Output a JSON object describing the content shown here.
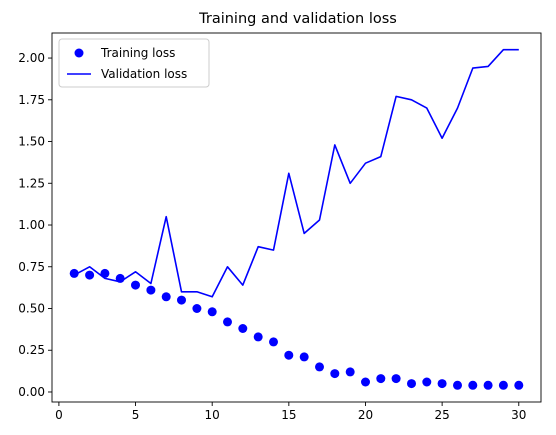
{
  "chart_data": {
    "type": "line",
    "title": "Training and validation loss",
    "xlabel": "",
    "ylabel": "",
    "xlim": [
      -0.45,
      31.45
    ],
    "ylim": [
      -0.06,
      2.15
    ],
    "xticks": [
      0,
      5,
      10,
      15,
      20,
      25,
      30
    ],
    "xtick_labels": [
      "0",
      "5",
      "10",
      "15",
      "20",
      "25",
      "30"
    ],
    "yticks": [
      0.0,
      0.25,
      0.5,
      0.75,
      1.0,
      1.25,
      1.5,
      1.75,
      2.0
    ],
    "ytick_labels": [
      "0.00",
      "0.25",
      "0.50",
      "0.75",
      "1.00",
      "1.25",
      "1.50",
      "1.75",
      "2.00"
    ],
    "grid": false,
    "legend_position": "top-left",
    "x": [
      1,
      2,
      3,
      4,
      5,
      6,
      7,
      8,
      9,
      10,
      11,
      12,
      13,
      14,
      15,
      16,
      17,
      18,
      19,
      20,
      21,
      22,
      23,
      24,
      25,
      26,
      27,
      28,
      29,
      30
    ],
    "series": [
      {
        "name": "Training loss",
        "style": "markers",
        "color": "#0000ff",
        "values": [
          0.71,
          0.7,
          0.71,
          0.68,
          0.64,
          0.61,
          0.57,
          0.55,
          0.5,
          0.48,
          0.42,
          0.38,
          0.33,
          0.3,
          0.22,
          0.21,
          0.15,
          0.11,
          0.12,
          0.06,
          0.08,
          0.08,
          0.05,
          0.06,
          0.05,
          0.04,
          0.04,
          0.04,
          0.04,
          0.04
        ]
      },
      {
        "name": "Validation loss",
        "style": "line",
        "color": "#0000ff",
        "values": [
          0.7,
          0.75,
          0.68,
          0.66,
          0.72,
          0.65,
          1.05,
          0.6,
          0.6,
          0.57,
          0.75,
          0.64,
          0.87,
          0.85,
          1.31,
          0.95,
          1.03,
          1.48,
          1.25,
          1.37,
          1.41,
          1.77,
          1.75,
          1.7,
          1.52,
          1.7,
          1.94,
          1.95,
          2.05,
          2.05
        ]
      }
    ]
  }
}
